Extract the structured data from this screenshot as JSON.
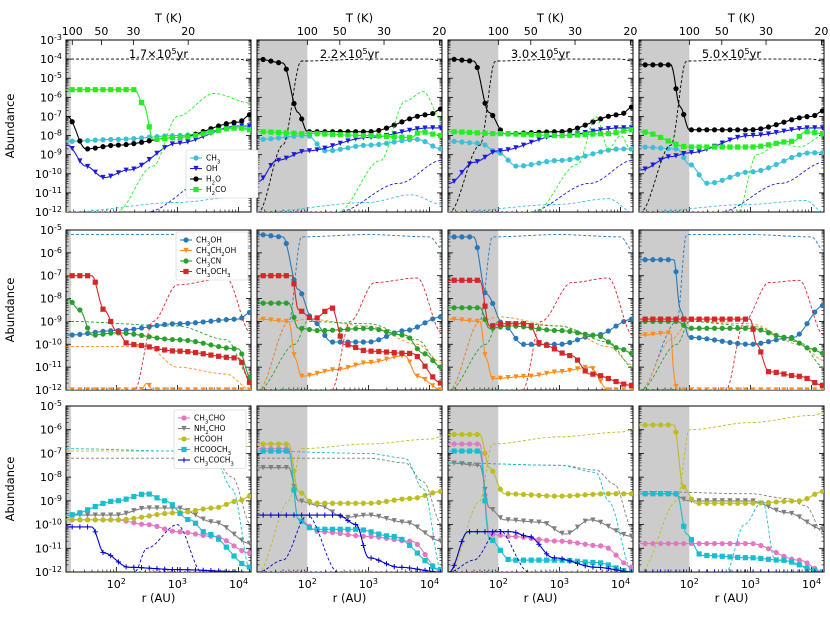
{
  "chart_data": {
    "type": "line",
    "layout": "3 rows x 4 columns of log-log panels sharing axes",
    "x_axis": {
      "label": "r (AU)",
      "scale": "log",
      "range": [
        15,
        16000
      ],
      "tick_labels": [
        "10^2",
        "10^3",
        "10^4"
      ]
    },
    "top_axis": {
      "label": "T (K)",
      "tick_labels": [
        "100",
        "50",
        "30",
        "20"
      ]
    },
    "y_axis": {
      "label": "Abundance",
      "scale": "log"
    },
    "row_ylims": [
      [
        -12,
        -3
      ],
      [
        -12,
        -5
      ],
      [
        -12,
        -5
      ]
    ],
    "row_yticks": [
      [
        "10^-3",
        "10^-4",
        "10^-5",
        "10^-6",
        "10^-7",
        "10^-8",
        "10^-9",
        "10^-10",
        "10^-11",
        "10^-12"
      ],
      [
        "10^-5",
        "10^-6",
        "10^-7",
        "10^-8",
        "10^-9",
        "10^-10",
        "10^-11",
        "10^-12"
      ],
      [
        "10^-5",
        "10^-6",
        "10^-7",
        "10^-8",
        "10^-9",
        "10^-10",
        "10^-11",
        "10^-12"
      ]
    ],
    "time_labels": [
      "1.7×10^5yr",
      "2.2×10^5yr",
      "3.0×10^5yr",
      "5.0×10^5yr"
    ],
    "shade_edge_au": [
      18,
      100,
      100,
      100
    ],
    "legends": [
      [
        "CH3",
        "OH",
        "H2O",
        "H2CO"
      ],
      [
        "CH3OH",
        "CH3CH2OH",
        "CH3CN",
        "CH3OCH3"
      ],
      [
        "CH3CHO",
        "NH2CHO",
        "HCOOH",
        "HCOOCH3",
        "CH3COCH3"
      ]
    ],
    "series_colors": {
      "CH3": "#3cc0d8",
      "OH": "#1a1ae0",
      "H2O": "#000000",
      "H2CO": "#22ee22",
      "CH3OH": "#2a78b8",
      "CH3CH2OH": "#ff8c1a",
      "CH3CN": "#2ca02c",
      "CH3OCH3": "#d62728",
      "CH3CHO": "#e377c2",
      "NH2CHO": "#7f7f7f",
      "HCOOH": "#bcbd22",
      "HCOOCH3": "#17becf",
      "CH3COCH3": "#0000cc"
    },
    "series": [
      {
        "name": "H2O",
        "note": "approx log10 abundance at r = [20,50,100,300,1000,3000,10000] AU",
        "col1": [
          -8.2,
          -8.7,
          -8.6,
          -8.3,
          -8.1,
          -7.7,
          -7.3
        ],
        "col2": [
          -4.0,
          -4.3,
          -7.8,
          -7.9,
          -7.8,
          -7.6,
          -6.7
        ],
        "col3": [
          -4.0,
          -4.1,
          -6.8,
          -7.8,
          -7.8,
          -7.6,
          -6.6
        ],
        "col4": [
          -4.3,
          -4.3,
          -6.9,
          -7.7,
          -7.7,
          -7.5,
          -6.9
        ]
      },
      {
        "name": "CH3OH",
        "note": "approx log10 abundance at r = [20,50,100,300,1000,3000,10000] AU",
        "col1": [
          -9.6,
          -9.4,
          -9.2,
          -9.1,
          -8.9,
          -8.8,
          -8.7
        ],
        "col2": [
          -5.2,
          -5.3,
          -9.0,
          -9.9,
          -9.9,
          -9.4,
          -8.8
        ],
        "col3": [
          -5.3,
          -5.3,
          -9.1,
          -9.9,
          -10.0,
          -9.6,
          -8.9
        ],
        "col4": [
          -6.3,
          -6.3,
          -9.7,
          -9.9,
          -10.0,
          -9.8,
          -8.4
        ]
      },
      {
        "name": "HCOOH",
        "note": "approx log10 abundance at r = [20,50,100,300,1000,3000,10000] AU",
        "col1": [
          -9.8,
          -9.8,
          -9.8,
          -9.6,
          -9.5,
          -9.3,
          -9.0
        ],
        "col2": [
          -6.6,
          -6.6,
          -9.1,
          -9.1,
          -9.1,
          -9.0,
          -8.6
        ],
        "col3": [
          -6.2,
          -6.2,
          -8.7,
          -8.8,
          -8.8,
          -8.8,
          -8.7
        ],
        "col4": [
          -5.8,
          -5.8,
          -9.1,
          -9.1,
          -9.0,
          -8.9,
          -8.6
        ]
      }
    ]
  }
}
